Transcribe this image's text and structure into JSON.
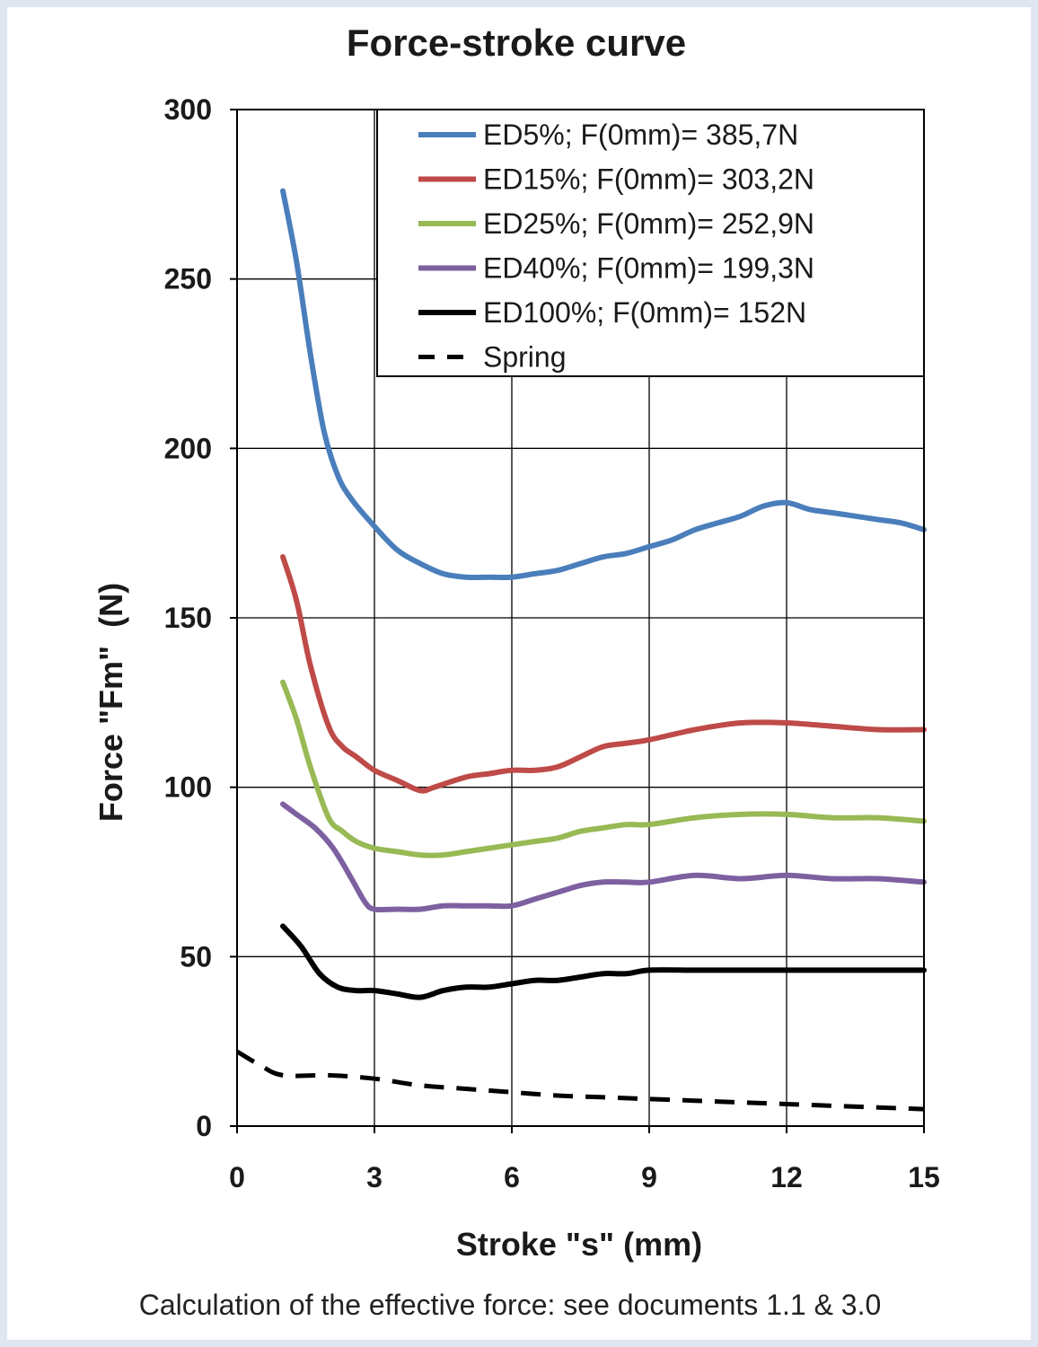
{
  "chart_data": {
    "type": "line",
    "title": "Force-stroke curve",
    "xlabel": "Stroke \"s\" (mm)",
    "ylabel": "Force \"Fm\"  (N)",
    "xlim": [
      0,
      15
    ],
    "ylim": [
      0,
      300
    ],
    "xticks": [
      0,
      3,
      6,
      9,
      12,
      15
    ],
    "yticks": [
      0,
      50,
      100,
      150,
      200,
      250,
      300
    ],
    "grid": true,
    "legend_position": "top-right",
    "series": [
      {
        "name": "ED5%; F(0mm)= 385,7N",
        "color": "#4a7ebb",
        "style": "solid",
        "points": [
          [
            1,
            276
          ],
          [
            1.3,
            255
          ],
          [
            1.6,
            228
          ],
          [
            1.9,
            205
          ],
          [
            2.2,
            192
          ],
          [
            2.5,
            185
          ],
          [
            3,
            177
          ],
          [
            3.5,
            170
          ],
          [
            4,
            166
          ],
          [
            4.5,
            163
          ],
          [
            5,
            162
          ],
          [
            5.5,
            162
          ],
          [
            6,
            162
          ],
          [
            6.5,
            163
          ],
          [
            7,
            164
          ],
          [
            7.5,
            166
          ],
          [
            8,
            168
          ],
          [
            8.5,
            169
          ],
          [
            9,
            171
          ],
          [
            9.5,
            173
          ],
          [
            10,
            176
          ],
          [
            10.5,
            178
          ],
          [
            11,
            180
          ],
          [
            11.5,
            183
          ],
          [
            12,
            184
          ],
          [
            12.5,
            182
          ],
          [
            13,
            181
          ],
          [
            13.5,
            180
          ],
          [
            14,
            179
          ],
          [
            14.5,
            178
          ],
          [
            15,
            176
          ]
        ]
      },
      {
        "name": "ED15%; F(0mm)= 303,2N",
        "color": "#be4b48",
        "style": "solid",
        "points": [
          [
            1,
            168
          ],
          [
            1.3,
            155
          ],
          [
            1.6,
            136
          ],
          [
            2,
            118
          ],
          [
            2.3,
            112
          ],
          [
            2.6,
            109
          ],
          [
            3,
            105
          ],
          [
            3.5,
            102
          ],
          [
            4,
            99
          ],
          [
            4.3,
            100
          ],
          [
            5,
            103
          ],
          [
            5.5,
            104
          ],
          [
            6,
            105
          ],
          [
            6.5,
            105
          ],
          [
            7,
            106
          ],
          [
            7.5,
            109
          ],
          [
            8,
            112
          ],
          [
            8.5,
            113
          ],
          [
            9,
            114
          ],
          [
            10,
            117
          ],
          [
            11,
            119
          ],
          [
            12,
            119
          ],
          [
            13,
            118
          ],
          [
            14,
            117
          ],
          [
            15,
            117
          ]
        ]
      },
      {
        "name": "ED25%; F(0mm)= 252,9N",
        "color": "#98b954",
        "style": "solid",
        "points": [
          [
            1,
            131
          ],
          [
            1.3,
            120
          ],
          [
            1.6,
            106
          ],
          [
            2,
            91
          ],
          [
            2.3,
            87
          ],
          [
            2.6,
            84
          ],
          [
            3,
            82
          ],
          [
            3.5,
            81
          ],
          [
            4,
            80
          ],
          [
            4.5,
            80
          ],
          [
            5,
            81
          ],
          [
            5.5,
            82
          ],
          [
            6,
            83
          ],
          [
            6.5,
            84
          ],
          [
            7,
            85
          ],
          [
            7.5,
            87
          ],
          [
            8,
            88
          ],
          [
            8.5,
            89
          ],
          [
            9,
            89
          ],
          [
            10,
            91
          ],
          [
            11,
            92
          ],
          [
            12,
            92
          ],
          [
            13,
            91
          ],
          [
            14,
            91
          ],
          [
            15,
            90
          ]
        ]
      },
      {
        "name": "ED40%; F(0mm)= 199,3N",
        "color": "#7d60a0",
        "style": "solid",
        "points": [
          [
            1,
            95
          ],
          [
            1.3,
            92
          ],
          [
            1.7,
            88
          ],
          [
            2.1,
            82
          ],
          [
            2.5,
            73
          ],
          [
            2.8,
            66
          ],
          [
            3,
            64
          ],
          [
            3.5,
            64
          ],
          [
            4,
            64
          ],
          [
            4.5,
            65
          ],
          [
            5,
            65
          ],
          [
            5.5,
            65
          ],
          [
            6,
            65
          ],
          [
            6.5,
            67
          ],
          [
            7,
            69
          ],
          [
            7.5,
            71
          ],
          [
            8,
            72
          ],
          [
            8.5,
            72
          ],
          [
            9,
            72
          ],
          [
            10,
            74
          ],
          [
            11,
            73
          ],
          [
            12,
            74
          ],
          [
            13,
            73
          ],
          [
            14,
            73
          ],
          [
            15,
            72
          ]
        ]
      },
      {
        "name": "ED100%; F(0mm)= 152N",
        "color": "#000000",
        "style": "solid",
        "points": [
          [
            1,
            59
          ],
          [
            1.4,
            53
          ],
          [
            1.8,
            45
          ],
          [
            2.2,
            41
          ],
          [
            2.6,
            40
          ],
          [
            3,
            40
          ],
          [
            3.5,
            39
          ],
          [
            4,
            38
          ],
          [
            4.5,
            40
          ],
          [
            5,
            41
          ],
          [
            5.5,
            41
          ],
          [
            6,
            42
          ],
          [
            6.5,
            43
          ],
          [
            7,
            43
          ],
          [
            7.5,
            44
          ],
          [
            8,
            45
          ],
          [
            8.5,
            45
          ],
          [
            9,
            46
          ],
          [
            10,
            46
          ],
          [
            11,
            46
          ],
          [
            12,
            46
          ],
          [
            13,
            46
          ],
          [
            14,
            46
          ],
          [
            15,
            46
          ]
        ]
      },
      {
        "name": "Spring",
        "color": "#000000",
        "style": "dashed",
        "points": [
          [
            0,
            22
          ],
          [
            0.5,
            18
          ],
          [
            1,
            15
          ],
          [
            2,
            15
          ],
          [
            3,
            14
          ],
          [
            4,
            12
          ],
          [
            5,
            11
          ],
          [
            6,
            10
          ],
          [
            7,
            9
          ],
          [
            8,
            8.5
          ],
          [
            9,
            8
          ],
          [
            10,
            7.5
          ],
          [
            11,
            7
          ],
          [
            12,
            6.5
          ],
          [
            13,
            6
          ],
          [
            14,
            5.5
          ],
          [
            15,
            5
          ]
        ]
      }
    ]
  },
  "caption": "Calculation of the effective force: see documents 1.1 & 3.0"
}
